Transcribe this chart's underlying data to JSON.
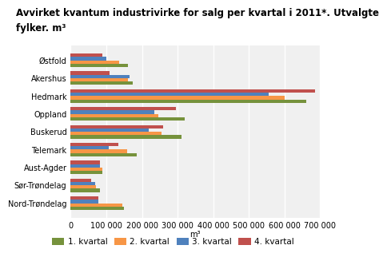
{
  "title_line1": "Avvirket kvantum industrivirke for salg per kvartal i 2011*. Utvalgte",
  "title_line2": "fylker. m³",
  "categories": [
    "Østfold",
    "Akershus",
    "Hedmark",
    "Oppland",
    "Buskerud",
    "Telemark",
    "Aust-Agder",
    "Sør-Trøndelag",
    "Nord-Trøndelag"
  ],
  "series": {
    "1. kvartal": [
      160000,
      175000,
      660000,
      320000,
      310000,
      185000,
      88000,
      82000,
      150000
    ],
    "2. kvartal": [
      135000,
      160000,
      600000,
      245000,
      255000,
      158000,
      88000,
      70000,
      145000
    ],
    "3. kvartal": [
      100000,
      165000,
      555000,
      235000,
      220000,
      108000,
      82000,
      68000,
      78000
    ],
    "4. kvartal": [
      90000,
      110000,
      685000,
      295000,
      260000,
      133000,
      82000,
      58000,
      78000
    ]
  },
  "colors": {
    "1. kvartal": "#76923C",
    "2. kvartal": "#F79646",
    "3. kvartal": "#4F81BD",
    "4. kvartal": "#C0504D"
  },
  "xlabel": "m³",
  "xlim": [
    0,
    700000
  ],
  "xticks": [
    0,
    100000,
    200000,
    300000,
    400000,
    500000,
    600000,
    700000
  ],
  "background_color": "#FFFFFF",
  "plot_background": "#F0F0F0",
  "title_fontsize": 8.5,
  "axis_fontsize": 7,
  "legend_fontsize": 7.5
}
